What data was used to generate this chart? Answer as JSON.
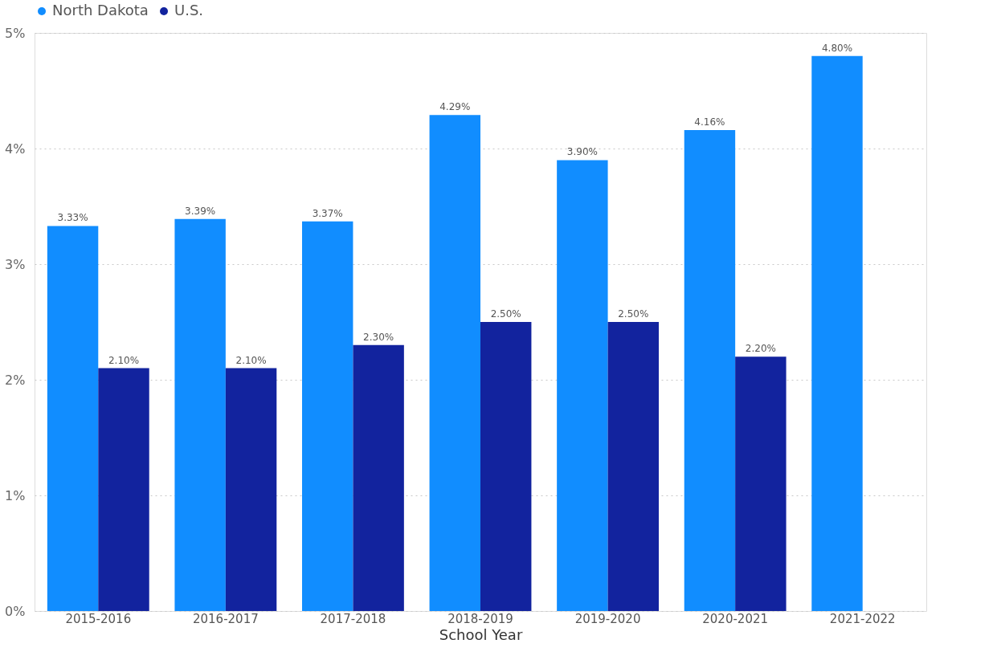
{
  "chart_data": {
    "type": "bar",
    "xlabel": "School Year",
    "categories": [
      "2015-2016",
      "2016-2017",
      "2017-2018",
      "2018-2019",
      "2019-2020",
      "2020-2021",
      "2021-2022"
    ],
    "series": [
      {
        "name": "North Dakota",
        "color": "#118dff",
        "values": [
          3.33,
          3.39,
          3.37,
          4.29,
          3.9,
          4.16,
          4.8
        ],
        "value_labels": [
          "3.33%",
          "3.39%",
          "3.37%",
          "4.29%",
          "3.90%",
          "4.16%",
          "4.80%"
        ]
      },
      {
        "name": "U.S.",
        "color": "#12239e",
        "values": [
          2.1,
          2.1,
          2.3,
          2.5,
          2.5,
          2.2,
          null
        ],
        "value_labels": [
          "2.10%",
          "2.10%",
          "2.30%",
          "2.50%",
          "2.50%",
          "2.20%",
          null
        ]
      }
    ],
    "ylim": [
      0,
      5
    ],
    "yticks": [
      {
        "value": 0,
        "label": "0%"
      },
      {
        "value": 1,
        "label": "1%"
      },
      {
        "value": 2,
        "label": "2%"
      },
      {
        "value": 3,
        "label": "3%"
      },
      {
        "value": 4,
        "label": "4%"
      },
      {
        "value": 5,
        "label": "5%"
      }
    ],
    "grid": "y",
    "legend": "top"
  }
}
